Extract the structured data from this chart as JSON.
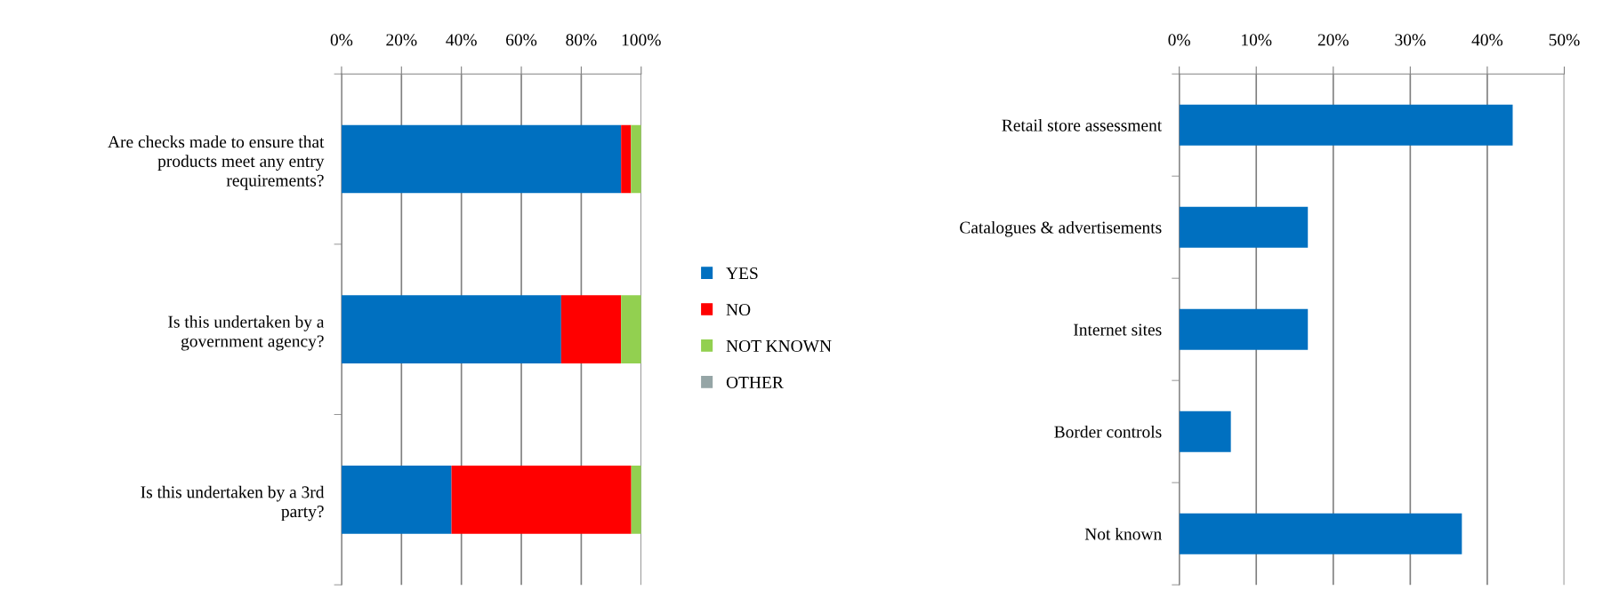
{
  "chart_data": [
    {
      "type": "bar",
      "orientation": "horizontal",
      "stacked": true,
      "categories": [
        "Are checks made to ensure that products meet any entry requirements?",
        "Is this undertaken by a government agency?",
        "Is this undertaken by a 3rd party?"
      ],
      "series": [
        {
          "name": "YES",
          "color": "#0070c0",
          "values": [
            93.3,
            73.3,
            36.7
          ]
        },
        {
          "name": "NO",
          "color": "#ff0000",
          "values": [
            3.3,
            20,
            60
          ]
        },
        {
          "name": "NOT KNOWN",
          "color": "#92d050",
          "values": [
            3.4,
            6.7,
            3.3
          ]
        },
        {
          "name": "OTHER",
          "color": "#95a5a6",
          "values": [
            0,
            0,
            0
          ]
        }
      ],
      "xlim": [
        0,
        100
      ],
      "xticks": [
        {
          "value": 0,
          "label": "0%"
        },
        {
          "value": 20,
          "label": "20%"
        },
        {
          "value": 40,
          "label": "40%"
        },
        {
          "value": 60,
          "label": "60%"
        },
        {
          "value": 80,
          "label": "80%"
        },
        {
          "value": 100,
          "label": "100%"
        }
      ],
      "grid": "x",
      "legend": "right"
    },
    {
      "type": "bar",
      "orientation": "horizontal",
      "categories": [
        "Retail store assessment",
        "Catalogues & advertisements",
        "Internet sites",
        "Border controls",
        "Not known"
      ],
      "series": [
        {
          "color": "#0070c0",
          "values": [
            43.3,
            16.7,
            16.7,
            6.7,
            36.7
          ]
        }
      ],
      "xlim": [
        0,
        50
      ],
      "xticks": [
        {
          "value": 0,
          "label": "0%"
        },
        {
          "value": 10,
          "label": "10%"
        },
        {
          "value": 20,
          "label": "20%"
        },
        {
          "value": 30,
          "label": "30%"
        },
        {
          "value": 40,
          "label": "40%"
        },
        {
          "value": 50,
          "label": "50%"
        }
      ],
      "grid": "x",
      "legend": false
    }
  ]
}
